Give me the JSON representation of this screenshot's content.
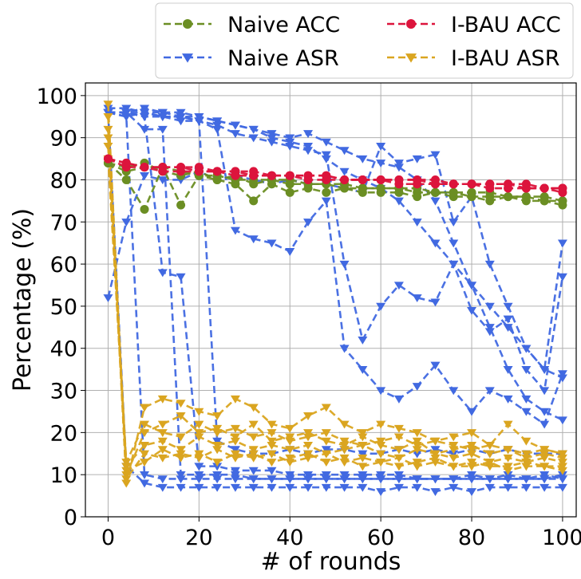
{
  "chart_data": {
    "type": "line",
    "title": "",
    "xlabel": "# of rounds",
    "ylabel": "Percentage (%)",
    "xlim": [
      -5,
      103
    ],
    "ylim": [
      0,
      103
    ],
    "xticks": [
      "0",
      "20",
      "40",
      "60",
      "80",
      "100"
    ],
    "yticks": [
      "0",
      "10",
      "20",
      "30",
      "40",
      "50",
      "60",
      "70",
      "80",
      "90",
      "100"
    ],
    "grid": true,
    "legend_position": "top-right",
    "legend": [
      {
        "label": "Naive ACC",
        "color": "#6b8e23",
        "marker": "circle"
      },
      {
        "label": "I-BAU ACC",
        "color": "#dc143c",
        "marker": "circle"
      },
      {
        "label": "Naive ASR",
        "color": "#4169e1",
        "marker": "triangle-down"
      },
      {
        "label": "I-BAU ASR",
        "color": "#daa520",
        "marker": "triangle-down"
      }
    ],
    "x": [
      0,
      4,
      8,
      12,
      16,
      20,
      24,
      28,
      32,
      36,
      40,
      44,
      48,
      52,
      56,
      60,
      64,
      68,
      72,
      76,
      80,
      84,
      88,
      92,
      96,
      100
    ],
    "series": [
      {
        "name": "Naive ACC",
        "color": "#6b8e23",
        "marker": "circle",
        "values": [
          84,
          82,
          83,
          83,
          82,
          81,
          81,
          80,
          80,
          80,
          79,
          79,
          79,
          78,
          78,
          78,
          78,
          77,
          77,
          77,
          76,
          76,
          76,
          76,
          75,
          75
        ]
      },
      {
        "name": "Naive ACC",
        "color": "#6b8e23",
        "marker": "circle",
        "values": [
          84,
          80,
          73,
          83,
          74,
          81,
          80,
          79,
          75,
          79,
          77,
          78,
          77,
          78,
          77,
          77,
          77,
          76,
          77,
          76,
          76,
          75,
          76,
          75,
          75,
          74
        ]
      },
      {
        "name": "Naive ACC",
        "color": "#6b8e23",
        "marker": "circle",
        "values": [
          84,
          83,
          84,
          82,
          81,
          82,
          80,
          81,
          79,
          80,
          80,
          79,
          79,
          79,
          78,
          78,
          78,
          78,
          77,
          77,
          77,
          77,
          76,
          76,
          76,
          75
        ]
      },
      {
        "name": "I-BAU ACC",
        "color": "#dc143c",
        "marker": "circle",
        "values": [
          85,
          84,
          83,
          83,
          83,
          82,
          82,
          82,
          81,
          81,
          81,
          81,
          81,
          80,
          80,
          80,
          80,
          80,
          80,
          79,
          79,
          79,
          79,
          79,
          78,
          78
        ]
      },
      {
        "name": "I-BAU ACC",
        "color": "#dc143c",
        "marker": "circle",
        "values": [
          85,
          83,
          83,
          82,
          82,
          82,
          82,
          81,
          81,
          81,
          81,
          80,
          80,
          80,
          80,
          80,
          79,
          79,
          79,
          79,
          79,
          78,
          78,
          78,
          78,
          78
        ]
      },
      {
        "name": "I-BAU ACC",
        "color": "#dc143c",
        "marker": "circle",
        "values": [
          85,
          84,
          83,
          83,
          83,
          83,
          82,
          82,
          82,
          81,
          81,
          81,
          81,
          80,
          80,
          80,
          80,
          80,
          79,
          79,
          79,
          79,
          79,
          78,
          78,
          77
        ]
      },
      {
        "name": "Naive ASR",
        "color": "#4169e1",
        "marker": "triangle-down",
        "values": [
          97,
          97,
          96,
          96,
          95,
          95,
          94,
          93,
          92,
          91,
          90,
          91,
          89,
          87,
          85,
          84,
          83,
          80,
          75,
          65,
          55,
          45,
          35,
          28,
          25,
          23
        ]
      },
      {
        "name": "Naive ASR",
        "color": "#4169e1",
        "marker": "triangle-down",
        "values": [
          96,
          96,
          97,
          96,
          96,
          95,
          94,
          93,
          92,
          90,
          89,
          88,
          85,
          82,
          80,
          78,
          75,
          70,
          65,
          60,
          55,
          50,
          45,
          40,
          35,
          65
        ]
      },
      {
        "name": "Naive ASR",
        "color": "#4169e1",
        "marker": "triangle-down",
        "values": [
          96,
          95,
          96,
          95,
          95,
          94,
          93,
          91,
          90,
          89,
          88,
          87,
          86,
          60,
          42,
          50,
          55,
          52,
          51,
          60,
          49,
          44,
          47,
          35,
          30,
          57
        ]
      },
      {
        "name": "Naive ASR",
        "color": "#4169e1",
        "marker": "triangle-down",
        "values": [
          96,
          96,
          95,
          95,
          94,
          94,
          92,
          68,
          66,
          65,
          63,
          70,
          75,
          40,
          35,
          30,
          28,
          31,
          36,
          30,
          25,
          30,
          28,
          25,
          22,
          34
        ]
      },
      {
        "name": "Naive ASR",
        "color": "#4169e1",
        "marker": "triangle-down",
        "values": [
          96,
          96,
          96,
          95,
          95,
          94,
          18,
          16,
          15,
          15,
          16,
          15,
          16,
          16,
          15,
          15,
          16,
          15,
          16,
          15,
          16,
          15,
          16,
          15,
          15,
          15
        ]
      },
      {
        "name": "Naive ASR",
        "color": "#4169e1",
        "marker": "triangle-down",
        "values": [
          96,
          96,
          95,
          58,
          57,
          12,
          12,
          11,
          11,
          11,
          10,
          10,
          10,
          10,
          10,
          10,
          10,
          9,
          9,
          9,
          10,
          9,
          10,
          9,
          10,
          9
        ]
      },
      {
        "name": "Naive ASR",
        "color": "#4169e1",
        "marker": "triangle-down",
        "values": [
          96,
          96,
          92,
          92,
          10,
          10,
          10,
          10,
          9,
          9,
          9,
          9,
          9,
          9,
          9,
          9,
          9,
          9,
          9,
          9,
          9,
          9,
          9,
          9,
          9,
          10
        ]
      },
      {
        "name": "Naive ASR",
        "color": "#4169e1",
        "marker": "triangle-down",
        "values": [
          96,
          95,
          10,
          9,
          9,
          9,
          9,
          9,
          9,
          9,
          9,
          9,
          9,
          9,
          9,
          9,
          9,
          9,
          9,
          9,
          9,
          9,
          9,
          9,
          9,
          9
        ]
      },
      {
        "name": "Naive ASR",
        "color": "#4169e1",
        "marker": "triangle-down",
        "values": [
          96,
          12,
          8,
          7,
          7,
          7,
          7,
          7,
          7,
          7,
          7,
          7,
          7,
          7,
          7,
          6,
          7,
          7,
          6,
          7,
          6,
          7,
          7,
          7,
          7,
          7
        ]
      },
      {
        "name": "Naive ASR",
        "color": "#4169e1",
        "marker": "triangle-down",
        "values": [
          52,
          70,
          81,
          80,
          80,
          82,
          80,
          81,
          80,
          79,
          80,
          79,
          79,
          78,
          77,
          88,
          84,
          85,
          86,
          70,
          76,
          60,
          50,
          40,
          35,
          33
        ]
      },
      {
        "name": "I-BAU ASR",
        "color": "#daa520",
        "marker": "triangle-down",
        "values": [
          98,
          8,
          26,
          28,
          27,
          25,
          24,
          28,
          26,
          22,
          21,
          24,
          26,
          22,
          20,
          22,
          21,
          20,
          18,
          19,
          20,
          17,
          22,
          18,
          16,
          15
        ]
      },
      {
        "name": "I-BAU ASR",
        "color": "#daa520",
        "marker": "triangle-down",
        "values": [
          95,
          10,
          20,
          22,
          24,
          20,
          21,
          19,
          22,
          18,
          19,
          20,
          18,
          17,
          19,
          17,
          16,
          18,
          15,
          16,
          17,
          15,
          16,
          14,
          15,
          14
        ]
      },
      {
        "name": "I-BAU ASR",
        "color": "#daa520",
        "marker": "triangle-down",
        "values": [
          92,
          12,
          17,
          18,
          16,
          19,
          17,
          18,
          16,
          17,
          16,
          17,
          15,
          16,
          17,
          15,
          14,
          16,
          15,
          14,
          15,
          13,
          14,
          13,
          14,
          13
        ]
      },
      {
        "name": "I-BAU ASR",
        "color": "#daa520",
        "marker": "triangle-down",
        "values": [
          90,
          9,
          15,
          14,
          15,
          14,
          16,
          14,
          15,
          13,
          14,
          15,
          13,
          14,
          12,
          13,
          14,
          12,
          13,
          12,
          13,
          12,
          12,
          13,
          12,
          12
        ]
      },
      {
        "name": "I-BAU ASR",
        "color": "#daa520",
        "marker": "triangle-down",
        "values": [
          88,
          11,
          13,
          16,
          14,
          15,
          13,
          15,
          14,
          15,
          13,
          14,
          15,
          13,
          14,
          13,
          12,
          13,
          14,
          12,
          12,
          13,
          11,
          12,
          12,
          11
        ]
      },
      {
        "name": "I-BAU ASR",
        "color": "#daa520",
        "marker": "triangle-down",
        "values": [
          85,
          13,
          22,
          20,
          19,
          22,
          20,
          21,
          19,
          20,
          18,
          19,
          20,
          18,
          17,
          18,
          19,
          17,
          18,
          17,
          16,
          17,
          16,
          15,
          16,
          15
        ]
      }
    ]
  }
}
